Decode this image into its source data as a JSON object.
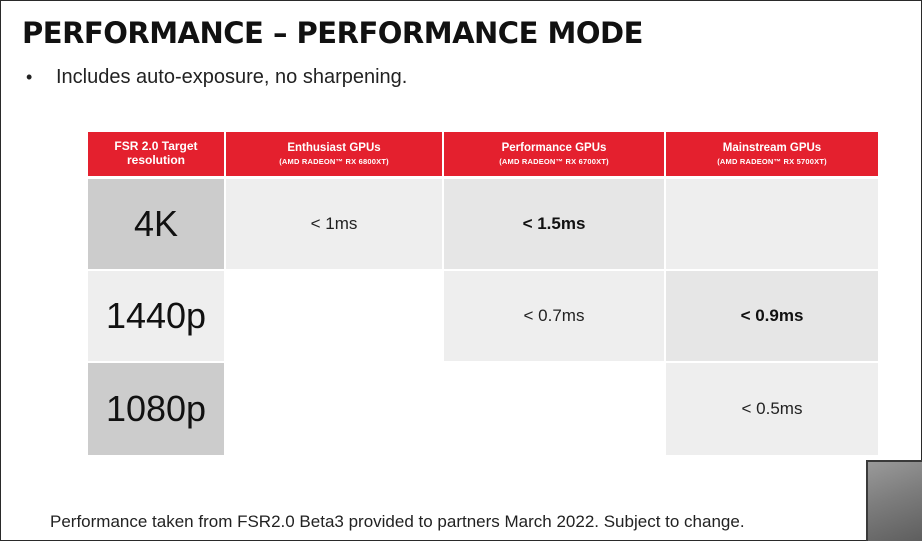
{
  "slide": {
    "title": "PERFORMANCE – PERFORMANCE MODE",
    "bullet": "Includes auto-exposure, no sharpening.",
    "footer": "Performance taken from FSR2.0 Beta3 provided to partners March 2022. Subject to change."
  },
  "table": {
    "header": {
      "col0": "FSR 2.0 Target resolution",
      "col1": {
        "title": "Enthusiast GPUs",
        "sub": "(AMD RADEON™ RX 6800XT)"
      },
      "col2": {
        "title": "Performance GPUs",
        "sub": "(AMD RADEON™ RX 6700XT)"
      },
      "col3": {
        "title": "Mainstream GPUs",
        "sub": "(AMD RADEON™ RX 5700XT)"
      }
    },
    "rows": [
      {
        "label": "4K",
        "c1": "< 1ms",
        "c2": "< 1.5ms",
        "c3": ""
      },
      {
        "label": "1440p",
        "c1": "",
        "c2": "< 0.7ms",
        "c3": "< 0.9ms"
      },
      {
        "label": "1080p",
        "c1": "",
        "c2": "",
        "c3": "< 0.5ms"
      }
    ]
  },
  "colors": {
    "header_red": "#e4202e",
    "row_label_gray": "#cccccc",
    "cell_light": "#eeeeee",
    "cell_mid": "#e6e6e6"
  }
}
